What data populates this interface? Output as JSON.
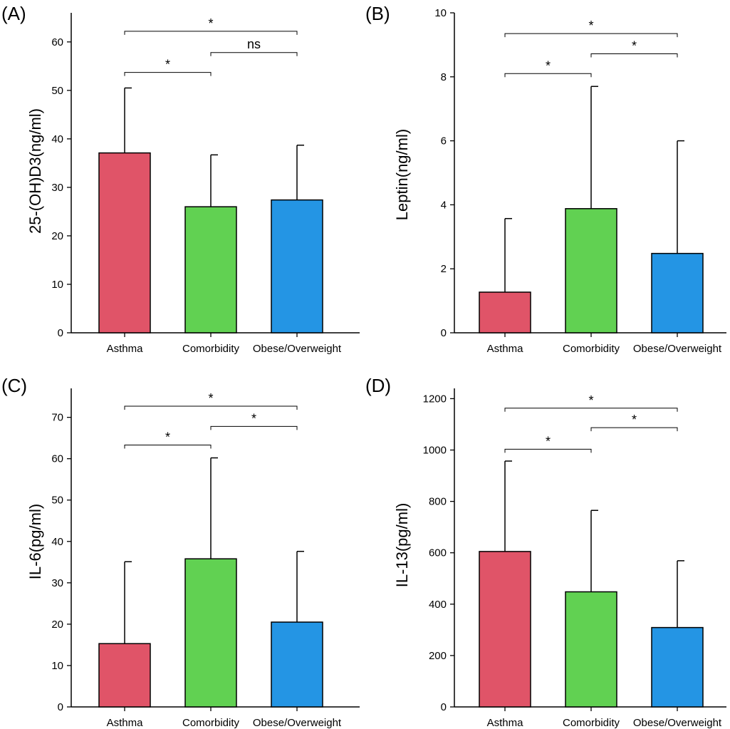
{
  "colors": {
    "asthma": "#e05468",
    "comorbidity": "#61d152",
    "obese": "#2495e4"
  },
  "chart_data": [
    {
      "type": "bar",
      "panel": "(A)",
      "ylabel": "25-(OH)D3(ng/ml)",
      "categories": [
        "Asthma",
        "Comorbidity",
        "Obese/Overweight"
      ],
      "values": [
        37.1,
        26.0,
        27.4
      ],
      "errors": [
        13.4,
        10.7,
        11.3
      ],
      "ylim": [
        0,
        66
      ],
      "yticks": [
        0,
        10,
        20,
        30,
        40,
        50,
        60
      ],
      "comparisons": [
        {
          "from": 0,
          "to": 2,
          "label": "*",
          "level": 62.2
        },
        {
          "from": 1,
          "to": 2,
          "label": "ns",
          "level": 57.8
        },
        {
          "from": 0,
          "to": 1,
          "label": "*",
          "level": 53.7
        }
      ]
    },
    {
      "type": "bar",
      "panel": "(B)",
      "ylabel": "Leptin(ng/ml)",
      "categories": [
        "Asthma",
        "Comorbidity",
        "Obese/Overweight"
      ],
      "values": [
        1.27,
        3.88,
        2.48
      ],
      "errors": [
        2.3,
        3.82,
        3.52
      ],
      "ylim": [
        0,
        10
      ],
      "yticks": [
        0,
        2,
        4,
        6,
        8,
        10
      ],
      "comparisons": [
        {
          "from": 0,
          "to": 2,
          "label": "*",
          "level": 9.35
        },
        {
          "from": 1,
          "to": 2,
          "label": "*",
          "level": 8.72
        },
        {
          "from": 0,
          "to": 1,
          "label": "*",
          "level": 8.1
        }
      ]
    },
    {
      "type": "bar",
      "panel": "(C)",
      "ylabel": "IL-6(pg/ml)",
      "categories": [
        "Asthma",
        "Comorbidity",
        "Obese/Overweight"
      ],
      "values": [
        15.3,
        35.8,
        20.5
      ],
      "errors": [
        19.8,
        24.4,
        17.1
      ],
      "ylim": [
        0,
        77
      ],
      "yticks": [
        0,
        10,
        20,
        30,
        40,
        50,
        60,
        70
      ],
      "comparisons": [
        {
          "from": 0,
          "to": 2,
          "label": "*",
          "level": 72.7
        },
        {
          "from": 1,
          "to": 2,
          "label": "*",
          "level": 67.8
        },
        {
          "from": 0,
          "to": 1,
          "label": "*",
          "level": 63.3
        }
      ]
    },
    {
      "type": "bar",
      "panel": "(D)",
      "ylabel": "IL-13(pg/ml)",
      "categories": [
        "Asthma",
        "Comorbidity",
        "Obese/Overweight"
      ],
      "values": [
        605,
        448,
        309
      ],
      "errors": [
        352,
        317,
        260
      ],
      "ylim": [
        0,
        1240
      ],
      "yticks": [
        0,
        200,
        400,
        600,
        800,
        1000,
        1200
      ],
      "comparisons": [
        {
          "from": 0,
          "to": 2,
          "label": "*",
          "level": 1163
        },
        {
          "from": 1,
          "to": 2,
          "label": "*",
          "level": 1087
        },
        {
          "from": 0,
          "to": 1,
          "label": "*",
          "level": 1003
        }
      ]
    }
  ]
}
